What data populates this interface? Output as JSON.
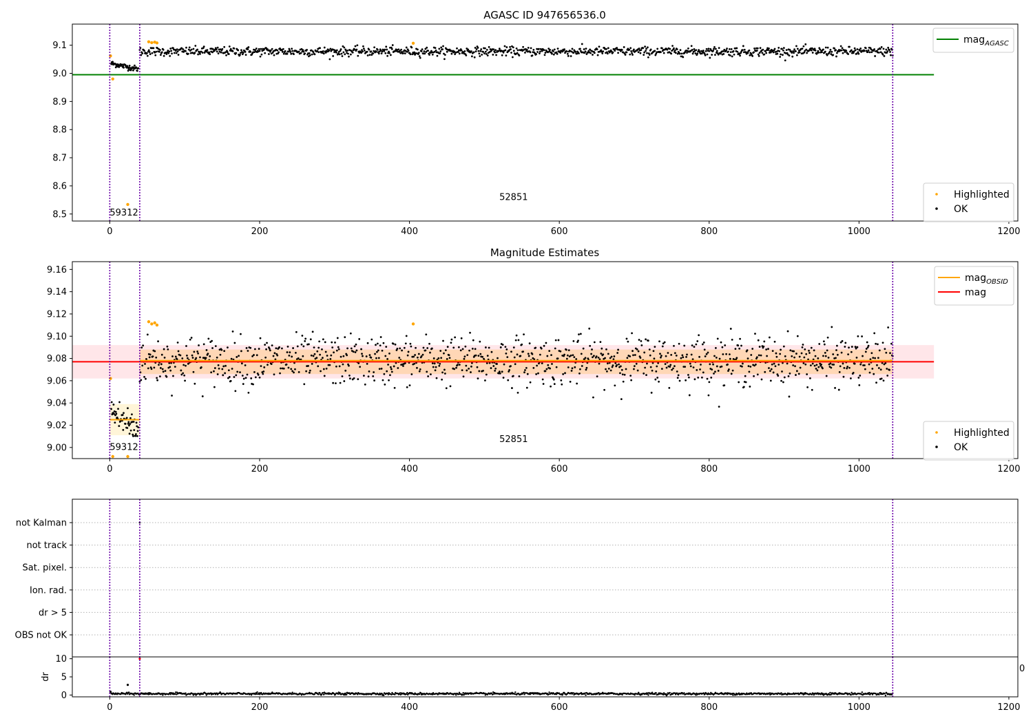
{
  "chart_data": [
    {
      "id": "agasc",
      "type": "scatter",
      "title": "AGASC ID 947656536.0",
      "xlabel": "",
      "ylabel": "",
      "xlim": [
        -50,
        1212
      ],
      "ylim": [
        8.475,
        9.175
      ],
      "xticks": [
        0,
        200,
        400,
        600,
        800,
        1000,
        1200
      ],
      "yticks": [
        8.5,
        8.6,
        8.7,
        8.8,
        8.9,
        9.0,
        9.1
      ],
      "ytick_format": 1,
      "vlines": [
        0,
        40,
        1045
      ],
      "obsid_labels": [
        {
          "text": "59312",
          "x": 0,
          "y": 8.5
        },
        {
          "text": "52851",
          "x": 520,
          "y": 8.555
        }
      ],
      "hlines": [
        {
          "name": "mag_AGASC",
          "y": 8.995,
          "x_range": [
            -50,
            1100
          ],
          "color": "#008000"
        }
      ],
      "series_ok": {
        "name": "OK",
        "color": "#000000",
        "segments": [
          {
            "x_start": 2,
            "x_end": 38,
            "y_start": 9.035,
            "y_end": 9.015,
            "count": 60,
            "noise": 0.005
          },
          {
            "x_start": 40,
            "x_end": 1045,
            "y_start": 9.078,
            "y_end": 9.078,
            "count": 1150,
            "noise": 0.008
          }
        ]
      },
      "series_highlighted": {
        "name": "Highlighted",
        "color": "#ffa500",
        "points": [
          [
            1,
            9.062
          ],
          [
            4,
            8.98
          ],
          [
            24,
            8.534
          ],
          [
            52,
            9.112
          ],
          [
            56,
            9.109
          ],
          [
            60,
            9.111
          ],
          [
            63,
            9.108
          ],
          [
            405,
            9.107
          ]
        ]
      },
      "legend_top": [
        {
          "label": "mag",
          "sub": "AGASC",
          "color": "#008000"
        }
      ],
      "legend_bottom": [
        {
          "label": "Highlighted",
          "color": "#ffa500"
        },
        {
          "label": "OK",
          "color": "#000000"
        }
      ]
    },
    {
      "id": "estimates",
      "type": "scatter",
      "title": "Magnitude Estimates",
      "xlabel": "",
      "ylabel": "",
      "xlim": [
        -50,
        1212
      ],
      "ylim": [
        8.99,
        9.167
      ],
      "xticks": [
        0,
        200,
        400,
        600,
        800,
        1000,
        1200
      ],
      "yticks": [
        9.0,
        9.02,
        9.04,
        9.06,
        9.08,
        9.1,
        9.12,
        9.14,
        9.16
      ],
      "ytick_format": 2,
      "vlines": [
        0,
        40,
        1045
      ],
      "obsid_labels": [
        {
          "text": "59312",
          "x": 0,
          "y": 8.999
        },
        {
          "text": "52851",
          "x": 520,
          "y": 9.006
        }
      ],
      "bands": [
        {
          "x_range": [
            -50,
            1100
          ],
          "y_range": [
            9.062,
            9.092
          ],
          "color": "#ff9aa8",
          "opacity": 0.25
        },
        {
          "x_range": [
            40,
            1045
          ],
          "y_range": [
            9.066,
            9.088
          ],
          "color": "#ffa500",
          "opacity": 0.22
        },
        {
          "x_range": [
            0,
            40
          ],
          "y_range": [
            9.011,
            9.039
          ],
          "color": "#ffe9a8",
          "opacity": 0.45
        }
      ],
      "hlines": [
        {
          "name": "mag",
          "y": 9.077,
          "x_range": [
            -50,
            1100
          ],
          "color": "#ff0000"
        },
        {
          "name": "mag_OBSID",
          "y": 9.078,
          "x_range": [
            40,
            1045
          ],
          "color": "#ffa500"
        },
        {
          "name": "mag_OBSID_59312",
          "y": 9.025,
          "x_range": [
            0,
            40
          ],
          "color": "#ffa500"
        }
      ],
      "series_ok": {
        "name": "OK",
        "color": "#000000",
        "segments": [
          {
            "x_start": 2,
            "x_end": 38,
            "y_start": 9.032,
            "y_end": 9.015,
            "count": 60,
            "noise": 0.008
          },
          {
            "x_start": 40,
            "x_end": 1045,
            "y_start": 9.078,
            "y_end": 9.078,
            "count": 1150,
            "noise": 0.011
          }
        ]
      },
      "series_highlighted": {
        "name": "Highlighted",
        "color": "#ffa500",
        "points": [
          [
            1,
            9.062
          ],
          [
            4,
            8.99
          ],
          [
            24,
            8.99
          ],
          [
            52,
            9.113
          ],
          [
            56,
            9.111
          ],
          [
            60,
            9.112
          ],
          [
            63,
            9.11
          ],
          [
            405,
            9.111
          ]
        ]
      },
      "legend_top": [
        {
          "label": "mag",
          "sub": "OBSID",
          "color": "#ffa500"
        },
        {
          "label": "mag",
          "sub": "",
          "color": "#ff0000"
        }
      ],
      "legend_bottom": [
        {
          "label": "Highlighted",
          "color": "#ffa500"
        },
        {
          "label": "OK",
          "color": "#000000"
        }
      ]
    },
    {
      "id": "flags",
      "type": "scatter",
      "xlabel": "",
      "ylabel": "",
      "xlim": [
        -50,
        1212
      ],
      "categories": [
        "OBS not OK",
        "dr > 5",
        "Ion. rad.",
        "Sat. pixel.",
        "not track",
        "not Kalman"
      ],
      "vlines": [
        0,
        40,
        1045
      ],
      "points": [
        {
          "x": 40,
          "category": "not Kalman"
        }
      ]
    },
    {
      "id": "dr",
      "type": "scatter",
      "xlabel": "",
      "ylabel": "dr",
      "xlim": [
        -50,
        1212
      ],
      "ylim": [
        -0.5,
        10.5
      ],
      "xticks": [
        0,
        200,
        400,
        600,
        800,
        1000,
        1200
      ],
      "yticks": [
        0,
        5,
        10
      ],
      "ytick_format": 0,
      "vlines": [
        0,
        40,
        1045
      ],
      "clipped_tick_label": "0",
      "series_ok": {
        "name": "dr",
        "color": "#000000",
        "segments": [
          {
            "x_start": 2,
            "x_end": 1045,
            "y_start": 0.35,
            "y_end": 0.35,
            "count": 1200,
            "noise": 0.15
          }
        ]
      },
      "extra_points": [
        {
          "x": 1,
          "y": 0.9,
          "color": "#000000"
        },
        {
          "x": 24,
          "y": 2.8,
          "color": "#000000"
        },
        {
          "x": 40,
          "y": 10.0,
          "color": "#ff0000"
        }
      ]
    }
  ]
}
